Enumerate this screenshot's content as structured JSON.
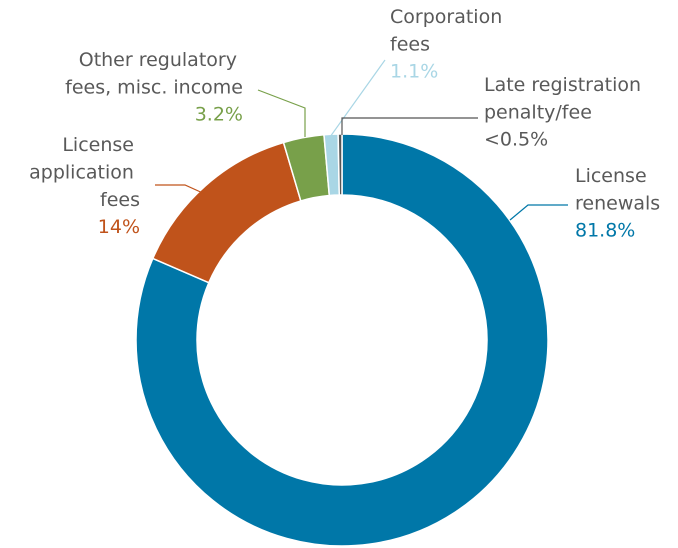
{
  "chart_data": {
    "type": "donut",
    "categories": [
      "License renewals",
      "License application fees",
      "Other regulatory fees, misc. income",
      "Corporation fees",
      "Late registration penalty/fee"
    ],
    "values": [
      81.8,
      14,
      3.2,
      1.1,
      0.3
    ],
    "value_labels": [
      "81.8%",
      "14%",
      "3.2%",
      "1.1%",
      "<0.5%"
    ],
    "colors": [
      "#0077a8",
      "#c0531b",
      "#78a04a",
      "#a9d6e5",
      "#555555"
    ]
  }
}
